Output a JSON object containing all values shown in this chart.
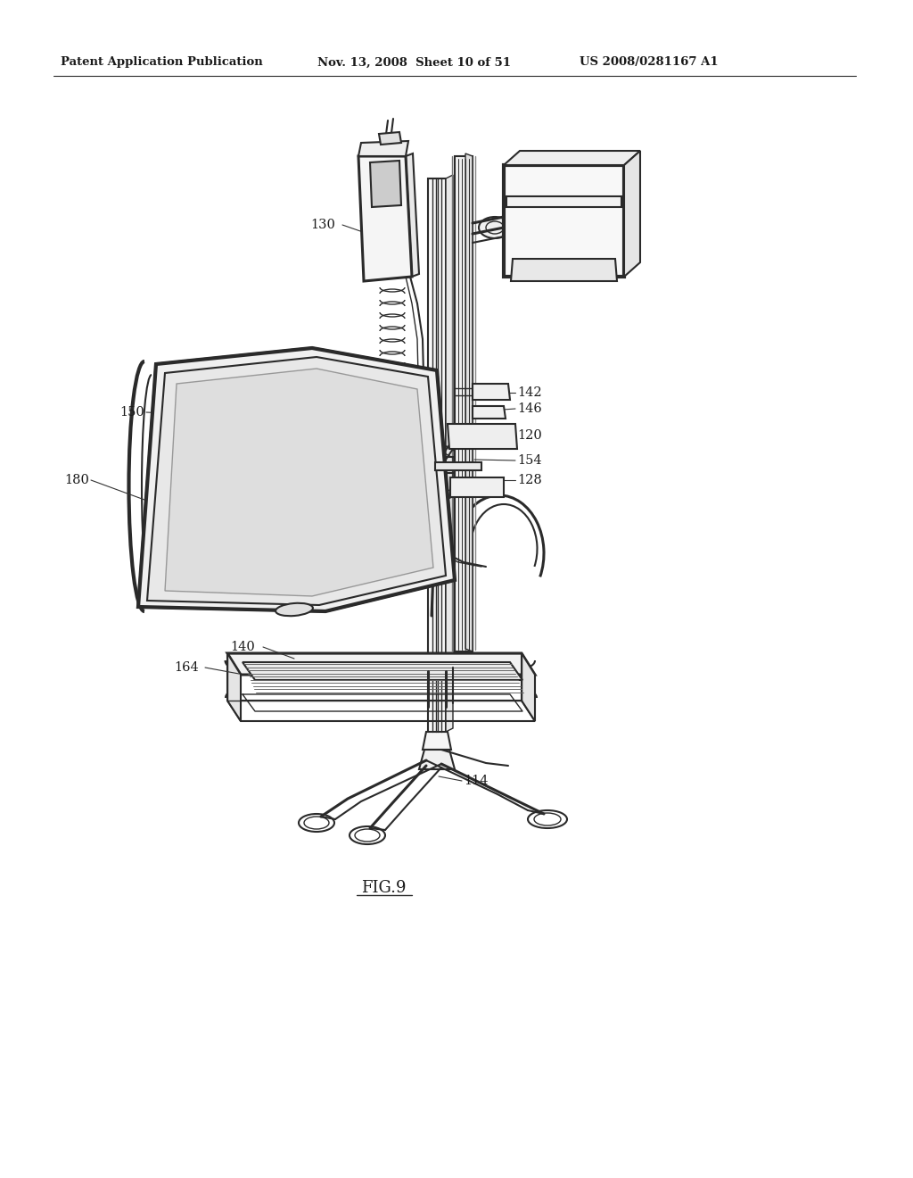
{
  "header_left": "Patent Application Publication",
  "header_center": "Nov. 13, 2008  Sheet 10 of 51",
  "header_right": "US 2008/0281167 A1",
  "fig_label": "FIG.9",
  "background_color": "#ffffff",
  "line_color": "#2a2a2a",
  "text_color": "#1a1a1a",
  "header_fontsize": 9.5,
  "label_fontsize": 10.5,
  "fig_label_fontsize": 13
}
